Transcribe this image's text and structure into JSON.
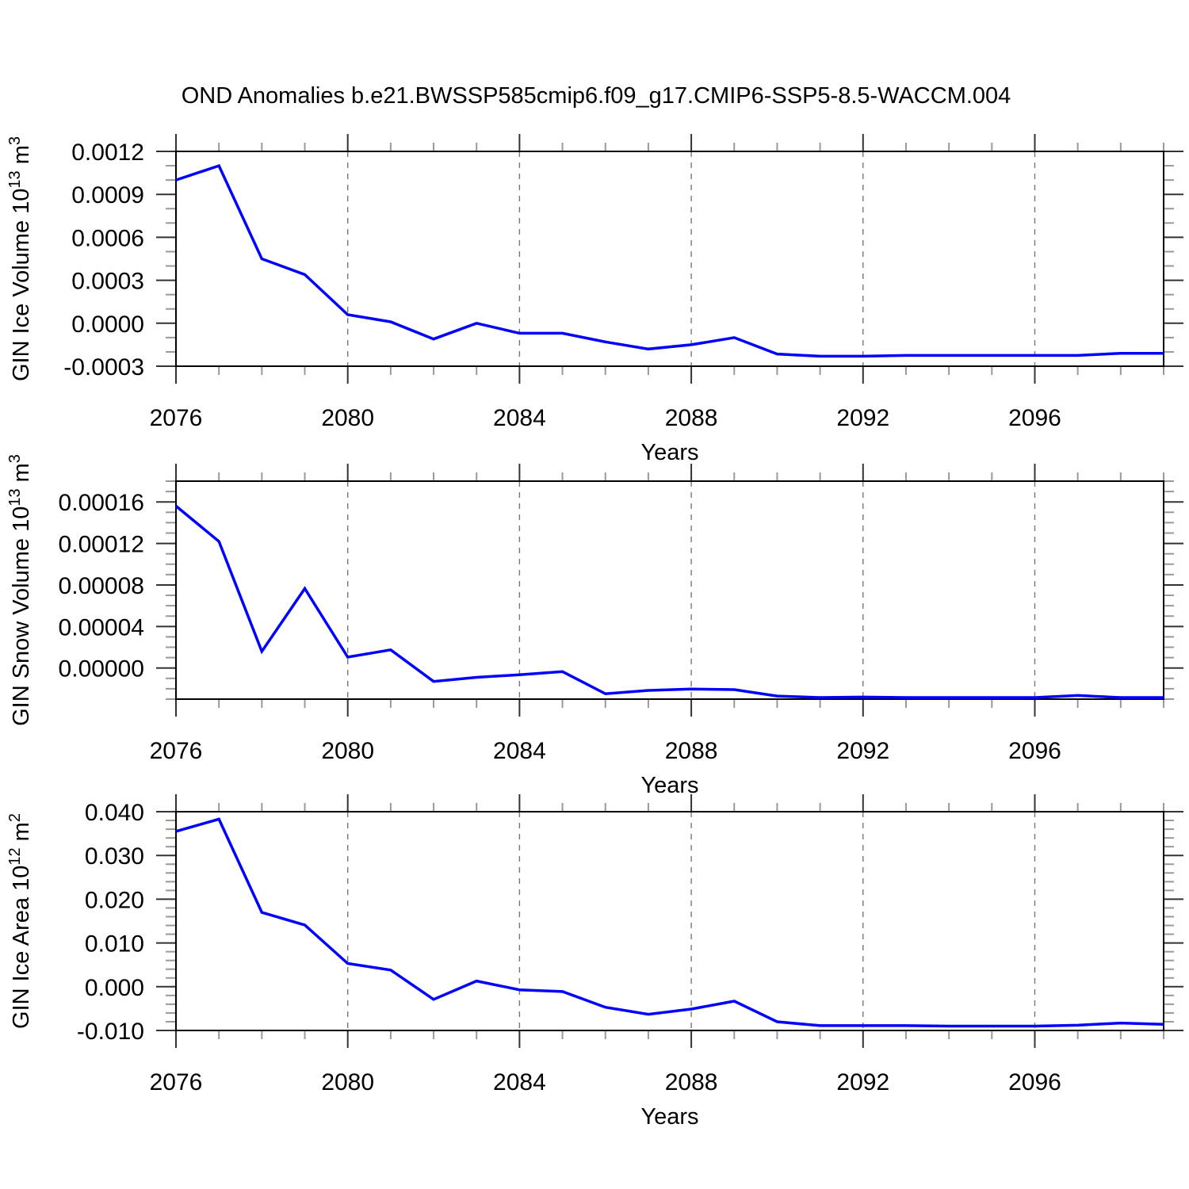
{
  "title": "OND Anomalies b.e21.BWSSP585cmip6.f09_g17.CMIP6-SSP5-8.5-WACCM.004",
  "colors": {
    "line": "#0000ff",
    "frame": "#000000",
    "major_tick": "#333333",
    "minor_tick": "#999999",
    "gridline": "#777777",
    "background": "#ffffff"
  },
  "chart_data": [
    {
      "type": "line",
      "name": "gin-ice-volume",
      "xlabel": "Years",
      "ylabel_parts": [
        {
          "text": "GIN Ice Volume 10",
          "sup": false
        },
        {
          "text": "13",
          "sup": true
        },
        {
          "text": " m",
          "sup": false
        },
        {
          "text": "3",
          "sup": true
        }
      ],
      "x": [
        2076,
        2077,
        2078,
        2079,
        2080,
        2081,
        2082,
        2083,
        2084,
        2085,
        2086,
        2087,
        2088,
        2089,
        2090,
        2091,
        2092,
        2093,
        2094,
        2095,
        2096,
        2097,
        2098,
        2099
      ],
      "values": [
        0.001,
        0.0011,
        0.00045,
        0.00034,
        6e-05,
        1e-05,
        -0.00011,
        0.0,
        -7e-05,
        -7e-05,
        -0.00013,
        -0.00018,
        -0.00015,
        -0.0001,
        -0.000215,
        -0.00023,
        -0.00023,
        -0.000225,
        -0.000225,
        -0.000225,
        -0.000225,
        -0.000225,
        -0.00021,
        -0.00021
      ],
      "xlim": [
        2076,
        2099
      ],
      "ylim": [
        -0.0003,
        0.0012
      ],
      "xticks": [
        2076,
        2080,
        2084,
        2088,
        2092,
        2096
      ],
      "xtick_labels": [
        "2076",
        "2080",
        "2084",
        "2088",
        "2092",
        "2096"
      ],
      "yticks": [
        -0.0003,
        0.0,
        0.0003,
        0.0006,
        0.0009,
        0.0012
      ],
      "ytick_labels": [
        "-0.0003",
        "0.0000",
        "0.0003",
        "0.0006",
        "0.0009",
        "0.0012"
      ],
      "minor_x_step": 1,
      "minor_y_step": 0.0001,
      "gridlines_x": [
        2080,
        2084,
        2088,
        2092,
        2096
      ],
      "grid_style": "dashed-vertical",
      "legend": "none"
    },
    {
      "type": "line",
      "name": "gin-snow-volume",
      "xlabel": "Years",
      "ylabel_parts": [
        {
          "text": "GIN Snow Volume 10",
          "sup": false
        },
        {
          "text": "13",
          "sup": true
        },
        {
          "text": " m",
          "sup": false
        },
        {
          "text": "3",
          "sup": true
        }
      ],
      "x": [
        2076,
        2077,
        2078,
        2079,
        2080,
        2081,
        2082,
        2083,
        2084,
        2085,
        2086,
        2087,
        2088,
        2089,
        2090,
        2091,
        2092,
        2093,
        2094,
        2095,
        2096,
        2097,
        2098,
        2099
      ],
      "values": [
        0.000156,
        0.000122,
        1.6e-05,
        7.65e-05,
        1.05e-05,
        1.75e-05,
        -1.3e-05,
        -9e-06,
        -6.5e-06,
        -3.5e-06,
        -2.48e-05,
        -2.16e-05,
        -2.03e-05,
        -2.08e-05,
        -2.7e-05,
        -2.85e-05,
        -2.8e-05,
        -2.85e-05,
        -2.85e-05,
        -2.85e-05,
        -2.85e-05,
        -2.65e-05,
        -2.85e-05,
        -2.85e-05
      ],
      "xlim": [
        2076,
        2099
      ],
      "ylim": [
        -3e-05,
        0.00018
      ],
      "xticks": [
        2076,
        2080,
        2084,
        2088,
        2092,
        2096
      ],
      "xtick_labels": [
        "2076",
        "2080",
        "2084",
        "2088",
        "2092",
        "2096"
      ],
      "yticks": [
        0.0,
        4e-05,
        8e-05,
        0.00012,
        0.00016
      ],
      "ytick_labels": [
        "0.00000",
        "0.00004",
        "0.00008",
        "0.00012",
        "0.00016"
      ],
      "minor_x_step": 1,
      "minor_y_step": 1e-05,
      "gridlines_x": [
        2080,
        2084,
        2088,
        2092,
        2096
      ],
      "grid_style": "dashed-vertical",
      "legend": "none"
    },
    {
      "type": "line",
      "name": "gin-ice-area",
      "xlabel": "Years",
      "ylabel_parts": [
        {
          "text": "GIN Ice Area 10",
          "sup": false
        },
        {
          "text": "12",
          "sup": true
        },
        {
          "text": " m",
          "sup": false
        },
        {
          "text": "2",
          "sup": true
        }
      ],
      "x": [
        2076,
        2077,
        2078,
        2079,
        2080,
        2081,
        2082,
        2083,
        2084,
        2085,
        2086,
        2087,
        2088,
        2089,
        2090,
        2091,
        2092,
        2093,
        2094,
        2095,
        2096,
        2097,
        2098,
        2099
      ],
      "values": [
        0.0355,
        0.0383,
        0.017,
        0.0141,
        0.0053,
        0.0038,
        -0.0029,
        0.0013,
        -0.0007,
        -0.0011,
        -0.0047,
        -0.0063,
        -0.0051,
        -0.0033,
        -0.008,
        -0.0089,
        -0.0089,
        -0.0089,
        -0.009,
        -0.009,
        -0.009,
        -0.0088,
        -0.0083,
        -0.0086
      ],
      "xlim": [
        2076,
        2099
      ],
      "ylim": [
        -0.01,
        0.04
      ],
      "xticks": [
        2076,
        2080,
        2084,
        2088,
        2092,
        2096
      ],
      "xtick_labels": [
        "2076",
        "2080",
        "2084",
        "2088",
        "2092",
        "2096"
      ],
      "yticks": [
        -0.01,
        0.0,
        0.01,
        0.02,
        0.03,
        0.04
      ],
      "ytick_labels": [
        "-0.010",
        "0.000",
        "0.010",
        "0.020",
        "0.030",
        "0.040"
      ],
      "minor_x_step": 1,
      "minor_y_step": 0.002,
      "gridlines_x": [
        2080,
        2084,
        2088,
        2092,
        2096
      ],
      "grid_style": "dashed-vertical",
      "legend": "none"
    }
  ]
}
